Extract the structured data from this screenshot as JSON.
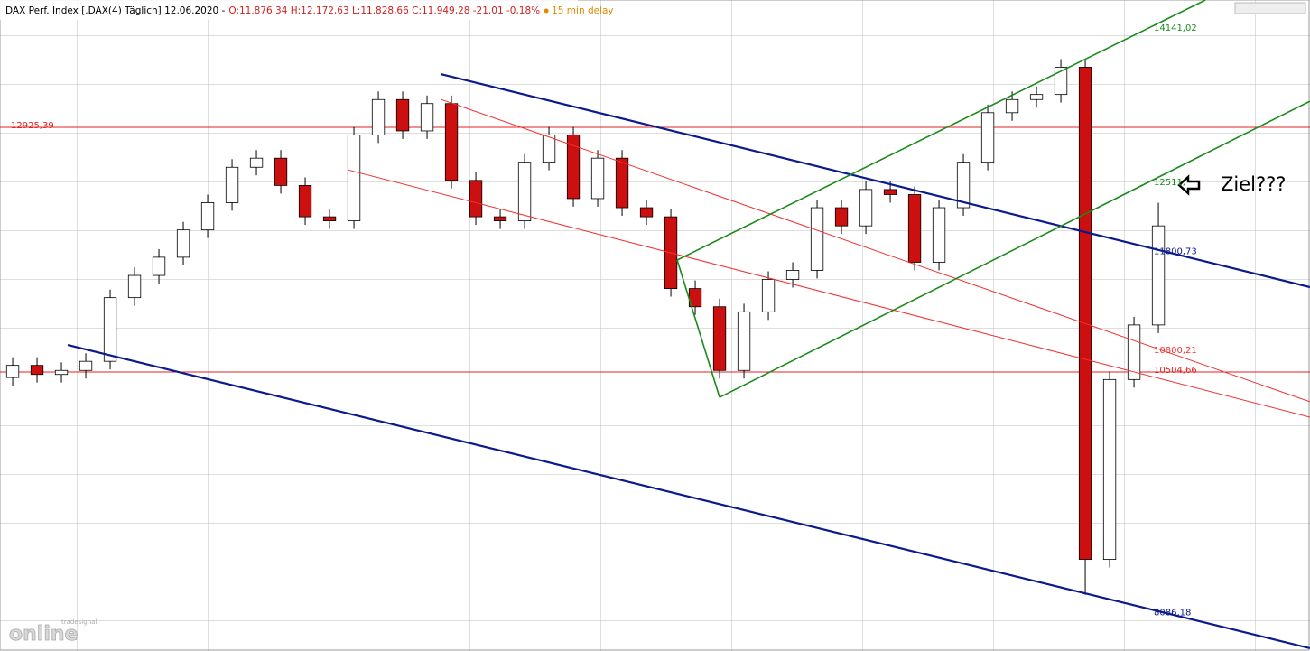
{
  "chart_data": {
    "type": "candlestick",
    "title": "DAX Perf. Index [.DAX(4) Täglich] 12.06.2020 -",
    "quote": "O:11.876,34 H:12.172,63 L:11.828,66 C:11.949,28 -21,01 -0,18%",
    "delay": "15 min delay",
    "annotation": "Ziel???",
    "logo": "online",
    "logo_sub": "tradesignal",
    "up_color": "#ffffff",
    "down_color": "#cc1010",
    "xlim": [
      -0.52,
      53.22
    ],
    "ylim": [
      7744,
      14185
    ],
    "open": [
      10450,
      10570,
      10480,
      10520,
      10610,
      11240,
      11460,
      11640,
      11910,
      12180,
      12530,
      12620,
      12350,
      12040,
      12000,
      12850,
      13200,
      12890,
      13160,
      12400,
      12040,
      12000,
      12580,
      12850,
      12220,
      12620,
      12130,
      12040,
      11330,
      11150,
      10520,
      11100,
      11420,
      11510,
      12130,
      11950,
      12310,
      12260,
      11590,
      12130,
      12580,
      13070,
      13200,
      13250,
      13520,
      8650,
      10430,
      10970
    ],
    "high": [
      10650,
      10650,
      10600,
      10690,
      11320,
      11540,
      11720,
      11990,
      12260,
      12610,
      12700,
      12700,
      12430,
      12120,
      12930,
      13280,
      13280,
      13240,
      13240,
      12480,
      12120,
      12660,
      12930,
      12930,
      12700,
      12700,
      12210,
      12120,
      11410,
      11230,
      11180,
      11500,
      11590,
      12210,
      12210,
      12390,
      12390,
      12340,
      12210,
      12660,
      13150,
      13280,
      13330,
      13600,
      13600,
      10510,
      11050,
      12180
    ],
    "low": [
      10370,
      10400,
      10400,
      10440,
      10530,
      11160,
      11380,
      11560,
      11830,
      12100,
      12450,
      12270,
      11960,
      11920,
      11920,
      12770,
      12810,
      12810,
      12320,
      11960,
      11920,
      11920,
      12500,
      12140,
      12140,
      12050,
      11960,
      11250,
      11070,
      10440,
      10440,
      11020,
      11340,
      11430,
      11870,
      11870,
      12180,
      11510,
      11510,
      12050,
      12500,
      12990,
      13120,
      13170,
      8300,
      8570,
      10350,
      10890
    ],
    "close": [
      10570,
      10480,
      10520,
      10610,
      11240,
      11460,
      11640,
      11910,
      12180,
      12530,
      12620,
      12350,
      12040,
      12000,
      12850,
      13200,
      12890,
      13160,
      12400,
      12040,
      12000,
      12580,
      12850,
      12220,
      12620,
      12130,
      12040,
      11330,
      11150,
      10520,
      11100,
      11420,
      11510,
      12130,
      11950,
      12310,
      12260,
      11590,
      12130,
      12580,
      13070,
      13200,
      13250,
      13520,
      8650,
      10430,
      10970,
      11950
    ],
    "levels": [
      {
        "value": 12925.39,
        "label": "12925,39",
        "color": "#e02020",
        "side": "left"
      },
      {
        "value": 10504.66,
        "label": "10504,66",
        "color": "#e02020",
        "side": "right"
      }
    ],
    "lines": [
      {
        "color": "#0a1a8c",
        "width": 2.2,
        "x": [
          17.56,
          53.22
        ],
        "y": [
          13452,
          11344
        ],
        "label": {
          "value": 11800.73,
          "label": "11800,73"
        }
      },
      {
        "color": "#0a1a8c",
        "width": 2.2,
        "x": [
          2.26,
          53.22
        ],
        "y": [
          10772,
          7771
        ],
        "label": {
          "value": 8086.18,
          "label": "8086,18"
        }
      },
      {
        "color": "#f03030",
        "width": 1,
        "x": [
          17.56,
          53.22
        ],
        "y": [
          13202,
          10210
        ],
        "label": {
          "value": 10800.21,
          "label": "10800,21"
        }
      },
      {
        "color": "#f03030",
        "width": 1,
        "x": [
          13.74,
          53.22
        ],
        "y": [
          12505,
          10058
        ]
      },
      {
        "color": "#1a8a1a",
        "width": 1.6,
        "x": [
          27.26,
          48.93
        ],
        "y": [
          11612,
          14185
        ],
        "label": {
          "value": 14141.02,
          "label": "14141,02"
        }
      },
      {
        "color": "#1a8a1a",
        "width": 1.6,
        "x": [
          29,
          53.22
        ],
        "y": [
          10254,
          13184
        ],
        "label": {
          "value": 12511,
          "label": "12511,"
        }
      },
      {
        "color": "#1a8a1a",
        "width": 1.6,
        "x": [
          27.26,
          29
        ],
        "y": [
          11612,
          10254
        ]
      }
    ]
  }
}
